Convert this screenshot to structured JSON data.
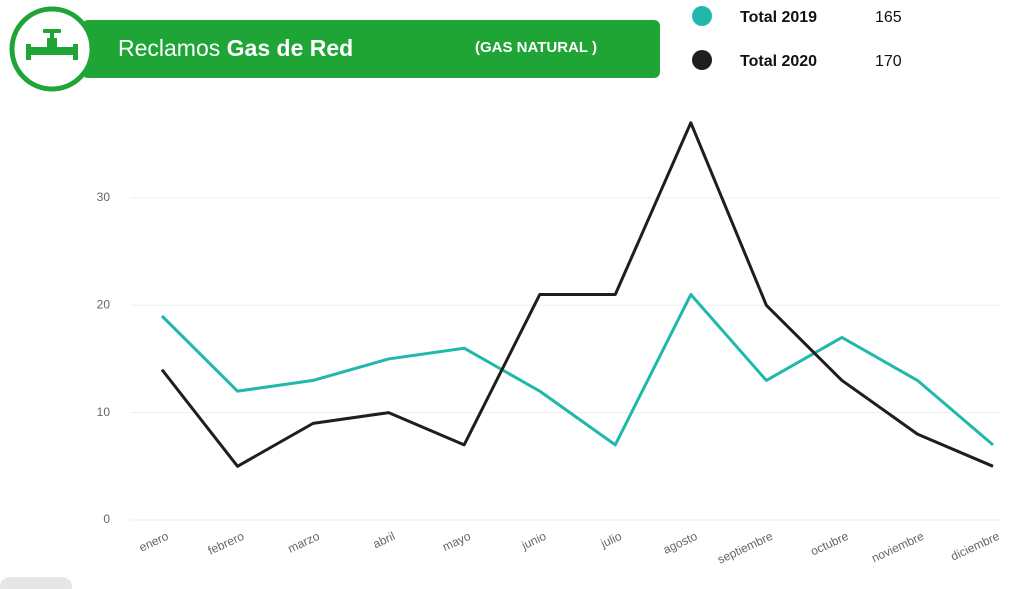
{
  "chart_data": {
    "type": "line",
    "title": "Reclamos",
    "title_bold": "Gas de Red",
    "subtitle": "(GAS NATURAL )",
    "categories": [
      "enero",
      "febrero",
      "marzo",
      "abril",
      "mayo",
      "junio",
      "julio",
      "agosto",
      "septiembre",
      "octubre",
      "noviembre",
      "diciembre"
    ],
    "series": [
      {
        "name": "Total 2019",
        "total": 165,
        "color": "#1fb8aa",
        "values": [
          19,
          12,
          13,
          15,
          16,
          12,
          7,
          21,
          13,
          17,
          13,
          7
        ]
      },
      {
        "name": "Total 2020",
        "total": 170,
        "color": "#1e1e1e",
        "values": [
          14,
          5,
          9,
          10,
          7,
          21,
          21,
          37,
          20,
          13,
          8,
          5
        ]
      }
    ],
    "ylim": [
      0,
      38
    ],
    "yticks": [
      0,
      10,
      20,
      30
    ],
    "grid": true
  }
}
